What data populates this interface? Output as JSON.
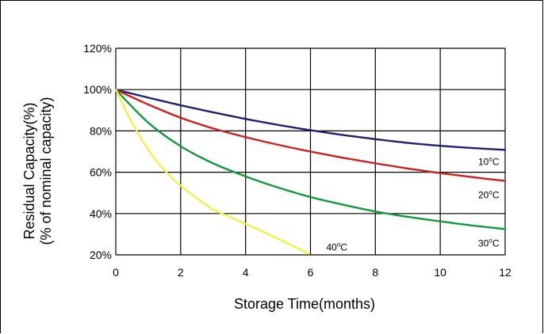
{
  "chart_data": {
    "type": "line",
    "xlabel": "Storage Time(months)",
    "ylabel_line1": "Residual Capacity(%)",
    "ylabel_line2": "(% of nominal capacity)",
    "xlim": [
      0,
      12
    ],
    "ylim": [
      20,
      120
    ],
    "x_ticks": [
      "0",
      "2",
      "4",
      "6",
      "8",
      "10",
      "12"
    ],
    "y_ticks": [
      "20%",
      "40%",
      "60%",
      "80%",
      "100%",
      "120%"
    ],
    "grid": true,
    "legend": "none (series labelled inline at line ends)",
    "series": [
      {
        "name": "10°C",
        "label_base": "10",
        "label_sup": "o",
        "label_unit": "C",
        "color": "#1f1f6e",
        "x": [
          0,
          1,
          2,
          3,
          4,
          5,
          6,
          7,
          8,
          9,
          10,
          11,
          12
        ],
        "y": [
          100,
          96.1,
          92.4,
          89.0,
          85.8,
          82.9,
          80.3,
          78.0,
          76.0,
          74.2,
          72.8,
          71.7,
          70.8
        ]
      },
      {
        "name": "20°C",
        "label_base": "20",
        "label_sup": "o",
        "label_unit": "C",
        "color": "#cc1f1f",
        "x": [
          0,
          1,
          2,
          3,
          4,
          5,
          6,
          7,
          8,
          9,
          10,
          11,
          12
        ],
        "y": [
          100,
          92.8,
          86.4,
          81.2,
          77.0,
          73.3,
          70.0,
          67.0,
          64.3,
          61.8,
          59.6,
          57.6,
          55.8
        ]
      },
      {
        "name": "30°C",
        "label_base": "30",
        "label_sup": "o",
        "label_unit": "C",
        "color": "#129a3c",
        "x": [
          0,
          1,
          2,
          3,
          4,
          5,
          6,
          7,
          8,
          9,
          10,
          11,
          12
        ],
        "y": [
          100,
          84.0,
          72.6,
          64.3,
          58.0,
          52.6,
          48.0,
          44.3,
          41.0,
          38.4,
          36.2,
          34.2,
          32.5
        ]
      },
      {
        "name": "40°C",
        "label_base": "40",
        "label_sup": "o",
        "label_unit": "C",
        "color": "#f2ee4a",
        "x": [
          0,
          0.5,
          1,
          1.5,
          2,
          2.5,
          3,
          3.5,
          4,
          4.5,
          5,
          5.5,
          5.95
        ],
        "y": [
          100,
          84.0,
          71.0,
          61.0,
          53.5,
          47.5,
          42.0,
          38.5,
          35.0,
          31.5,
          27.8,
          24.0,
          20.5
        ]
      }
    ]
  }
}
